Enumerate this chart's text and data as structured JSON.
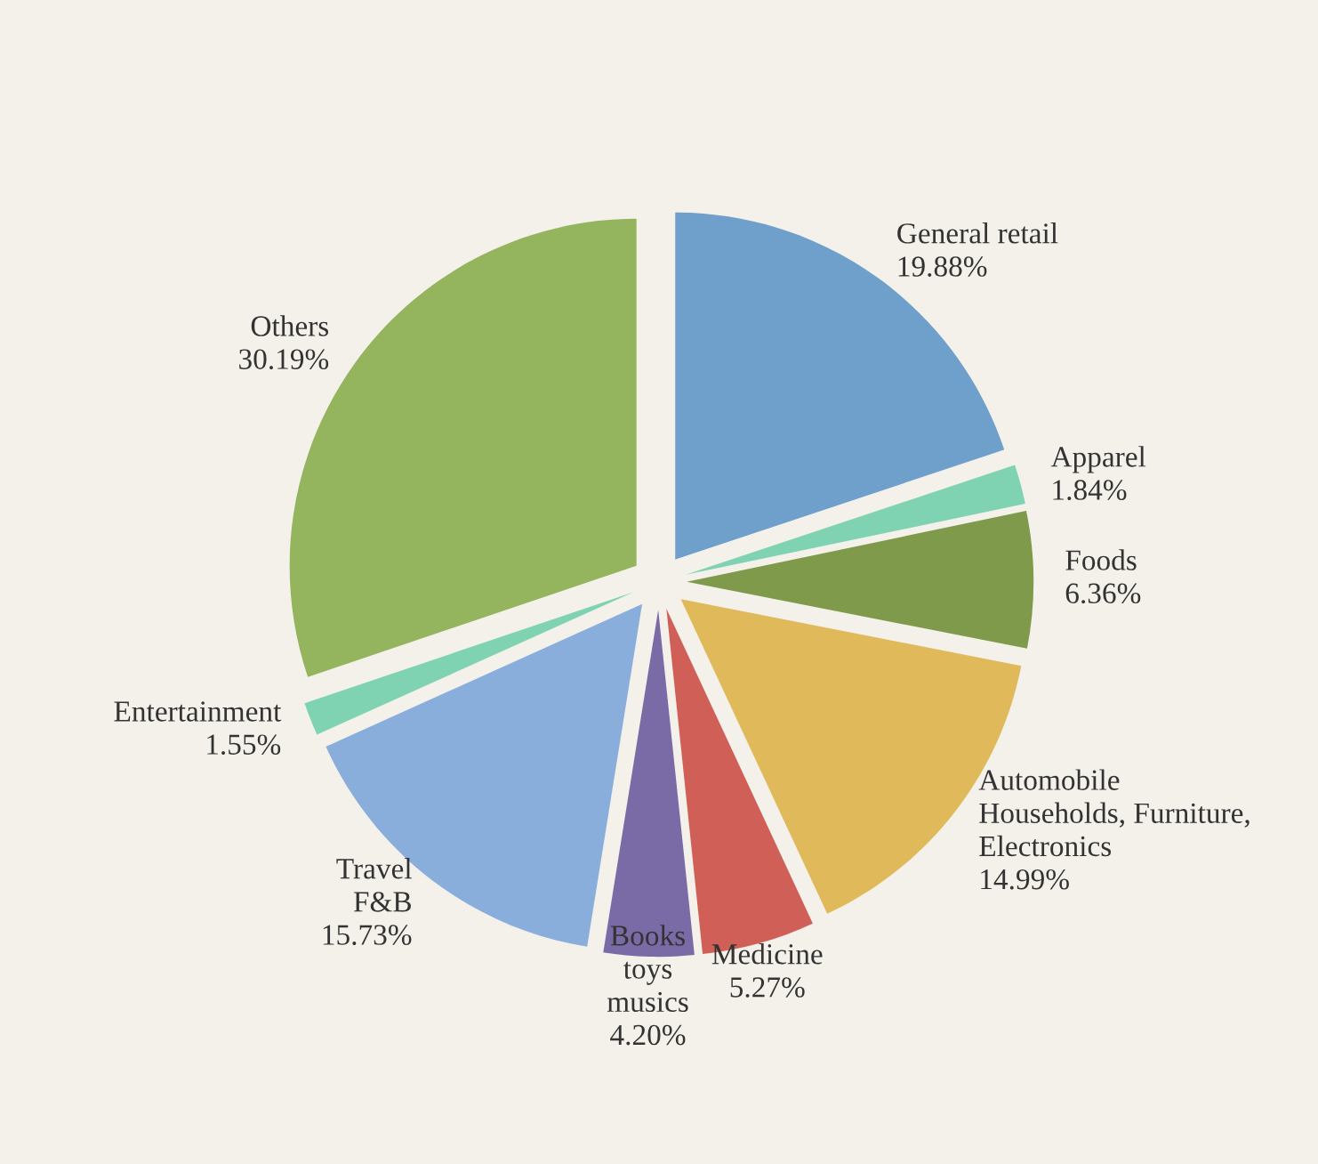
{
  "chart_data": {
    "type": "pie",
    "categories": [
      "General retail",
      "Apparel",
      "Foods",
      "Automobile\nHouseholds, Furniture,\nElectronics",
      "Medicine",
      "Books\ntoys\nmusics",
      "Travel\nF&B",
      "Entertainment",
      "Others"
    ],
    "values": [
      19.88,
      1.84,
      6.36,
      14.99,
      5.27,
      4.2,
      15.73,
      1.55,
      30.19
    ],
    "value_labels": [
      "19.88%",
      "1.84%",
      "6.36%",
      "14.99%",
      "5.27%",
      "4.20%",
      "15.73%",
      "1.55%",
      "30.19%"
    ],
    "colors": [
      "#6f9fcb",
      "#7fd3b3",
      "#7f9a4a",
      "#e0b95a",
      "#cf5f57",
      "#7a6aa6",
      "#8aaedb",
      "#7fd3b3",
      "#94b45e"
    ],
    "legend": false
  }
}
